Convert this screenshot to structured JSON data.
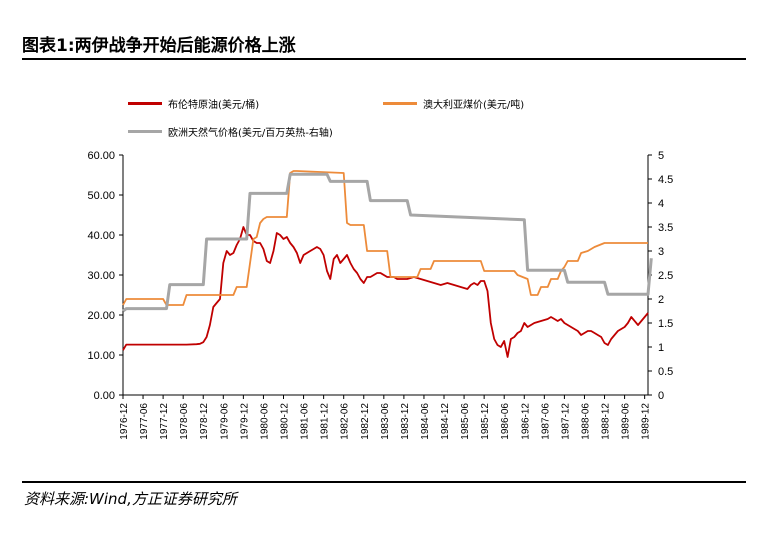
{
  "figure": {
    "title": "图表1:两伊战争开始后能源价格上涨",
    "source": "资料来源:Wind,方正证券研究所"
  },
  "legend": [
    {
      "name": "布伦特原油(美元/桶)",
      "color": "#c00000"
    },
    {
      "name": "澳大利亚煤价(美元/吨)",
      "color": "#ed8b3a"
    },
    {
      "name": "欧洲天然气价格(美元/百万英热-右轴)",
      "color": "#a6a6a6"
    }
  ],
  "chart_data": {
    "type": "line",
    "left_axis": {
      "range": [
        0,
        60
      ],
      "ticks": [
        "0.00",
        "10.00",
        "20.00",
        "30.00",
        "40.00",
        "50.00",
        "60.00"
      ]
    },
    "right_axis": {
      "range": [
        0,
        5
      ],
      "ticks": [
        "0",
        "0.5",
        "1",
        "1.5",
        "2",
        "2.5",
        "3",
        "3.5",
        "4",
        "4.5",
        "5"
      ]
    },
    "x_range": [
      1976.917,
      1990.0
    ],
    "x_ticks": [
      "1976-12",
      "1977-06",
      "1977-12",
      "1978-06",
      "1978-12",
      "1979-06",
      "1979-12",
      "1980-06",
      "1980-12",
      "1981-06",
      "1981-12",
      "1982-06",
      "1982-12",
      "1983-06",
      "1983-12",
      "1984-06",
      "1984-12",
      "1985-06",
      "1985-12",
      "1986-06",
      "1986-12",
      "1987-06",
      "1987-12",
      "1988-06",
      "1988-12",
      "1989-06",
      "1989-12"
    ],
    "series": [
      {
        "name": "布伦特原油(美元/桶)",
        "axis": "left",
        "color": "#c00000",
        "x": [
          1976.917,
          1977.0,
          1977.5,
          1978.0,
          1978.5,
          1978.75,
          1978.833,
          1978.917,
          1979.0,
          1979.083,
          1979.167,
          1979.25,
          1979.333,
          1979.417,
          1979.5,
          1979.583,
          1979.667,
          1979.75,
          1979.833,
          1979.917,
          1980.0,
          1980.083,
          1980.167,
          1980.25,
          1980.333,
          1980.417,
          1980.5,
          1980.583,
          1980.667,
          1980.75,
          1980.833,
          1980.917,
          1981.0,
          1981.083,
          1981.167,
          1981.25,
          1981.333,
          1981.417,
          1981.5,
          1981.583,
          1981.667,
          1981.75,
          1981.833,
          1981.917,
          1982.0,
          1982.083,
          1982.167,
          1982.25,
          1982.333,
          1982.417,
          1982.5,
          1982.583,
          1982.667,
          1982.75,
          1982.833,
          1982.917,
          1983.0,
          1983.083,
          1983.167,
          1983.25,
          1983.333,
          1983.5,
          1983.667,
          1983.75,
          1983.917,
          1984.0,
          1984.167,
          1984.333,
          1984.5,
          1984.667,
          1984.833,
          1985.0,
          1985.167,
          1985.333,
          1985.5,
          1985.583,
          1985.667,
          1985.75,
          1985.833,
          1985.917,
          1986.0,
          1986.083,
          1986.167,
          1986.25,
          1986.333,
          1986.417,
          1986.5,
          1986.583,
          1986.667,
          1986.75,
          1986.833,
          1986.917,
          1987.0,
          1987.167,
          1987.333,
          1987.5,
          1987.583,
          1987.667,
          1987.75,
          1987.833,
          1987.917,
          1988.0,
          1988.167,
          1988.25,
          1988.333,
          1988.5,
          1988.583,
          1988.667,
          1988.75,
          1988.833,
          1988.917,
          1989.0,
          1989.083,
          1989.25,
          1989.417,
          1989.5,
          1989.583,
          1989.75,
          1990.0
        ],
        "values": [
          11.2,
          12.6,
          12.6,
          12.6,
          12.6,
          12.7,
          12.8,
          13.2,
          14.5,
          17.5,
          22.0,
          23.0,
          24.0,
          33.0,
          36.0,
          35.0,
          35.5,
          37.5,
          39.0,
          42.0,
          40.0,
          40.0,
          38.5,
          38.0,
          38.0,
          36.5,
          33.5,
          33.0,
          36.0,
          40.5,
          40.0,
          39.0,
          39.5,
          38.0,
          37.0,
          35.5,
          33.0,
          35.0,
          35.5,
          36.0,
          36.5,
          37.0,
          36.5,
          35.0,
          31.0,
          29.0,
          34.0,
          35.0,
          33.0,
          34.0,
          35.0,
          33.0,
          31.5,
          30.5,
          29.0,
          28.0,
          29.5,
          29.5,
          30.0,
          30.5,
          30.5,
          29.5,
          29.5,
          29.0,
          29.0,
          29.0,
          29.5,
          29.0,
          28.5,
          28.0,
          27.5,
          28.0,
          27.5,
          27.0,
          26.5,
          27.5,
          28.0,
          27.5,
          28.5,
          28.5,
          26.0,
          18.0,
          14.0,
          12.5,
          12.0,
          13.5,
          9.5,
          14.0,
          14.5,
          15.5,
          16.0,
          18.0,
          17.0,
          18.0,
          18.5,
          19.0,
          19.5,
          19.0,
          18.5,
          19.0,
          18.0,
          17.5,
          16.5,
          16.0,
          15.0,
          16.0,
          16.0,
          15.5,
          15.0,
          14.5,
          13.0,
          12.5,
          14.0,
          16.0,
          17.0,
          18.0,
          19.5,
          17.5,
          20.5
        ]
      },
      {
        "name": "澳大利亚煤价(美元/吨)",
        "axis": "left",
        "color": "#ed8b3a",
        "x": [
          1976.917,
          1977.0,
          1977.917,
          1978.0,
          1978.417,
          1978.5,
          1979.667,
          1979.75,
          1980.0,
          1980.167,
          1980.25,
          1980.333,
          1980.417,
          1980.5,
          1981.0,
          1981.083,
          1981.167,
          1981.25,
          1982.417,
          1982.5,
          1982.583,
          1982.917,
          1983.0,
          1983.5,
          1983.583,
          1984.25,
          1984.333,
          1984.583,
          1984.667,
          1985.833,
          1985.917,
          1986.667,
          1986.75,
          1987.0,
          1987.083,
          1987.25,
          1987.333,
          1987.5,
          1987.583,
          1987.75,
          1987.833,
          1987.917,
          1988.0,
          1988.25,
          1988.333,
          1988.5,
          1988.667,
          1988.917,
          1989.0,
          1990.0
        ],
        "values": [
          22.5,
          24.0,
          24.0,
          22.5,
          22.5,
          25.0,
          25.0,
          27.0,
          27.0,
          39.0,
          39.5,
          43.0,
          44.0,
          44.5,
          44.5,
          55.5,
          56.0,
          56.0,
          55.5,
          43.0,
          42.5,
          42.5,
          36.0,
          36.0,
          29.5,
          29.5,
          31.5,
          31.5,
          33.5,
          33.5,
          31.0,
          31.0,
          30.0,
          29.0,
          25.0,
          25.0,
          27.0,
          27.0,
          29.0,
          29.0,
          31.0,
          32.0,
          33.5,
          33.5,
          35.5,
          36.0,
          37.0,
          38.0,
          38.0,
          38.0
        ]
      },
      {
        "name": "欧洲天然气价格(美元/百万英热-右轴)",
        "axis": "right",
        "color": "#a6a6a6",
        "x": [
          1976.917,
          1977.0,
          1978.0,
          1978.083,
          1978.917,
          1979.0,
          1980.0,
          1980.083,
          1981.0,
          1981.083,
          1982.0,
          1982.083,
          1983.0,
          1983.083,
          1984.0,
          1984.083,
          1986.917,
          1987.0,
          1987.917,
          1988.0,
          1988.917,
          1989.0,
          1990.0,
          1990.083
        ],
        "values": [
          1.75,
          1.8,
          1.8,
          2.3,
          2.3,
          3.25,
          3.25,
          4.2,
          4.2,
          4.6,
          4.6,
          4.45,
          4.45,
          4.05,
          4.05,
          3.75,
          3.65,
          2.6,
          2.6,
          2.35,
          2.35,
          2.1,
          2.1,
          2.85
        ]
      }
    ]
  }
}
